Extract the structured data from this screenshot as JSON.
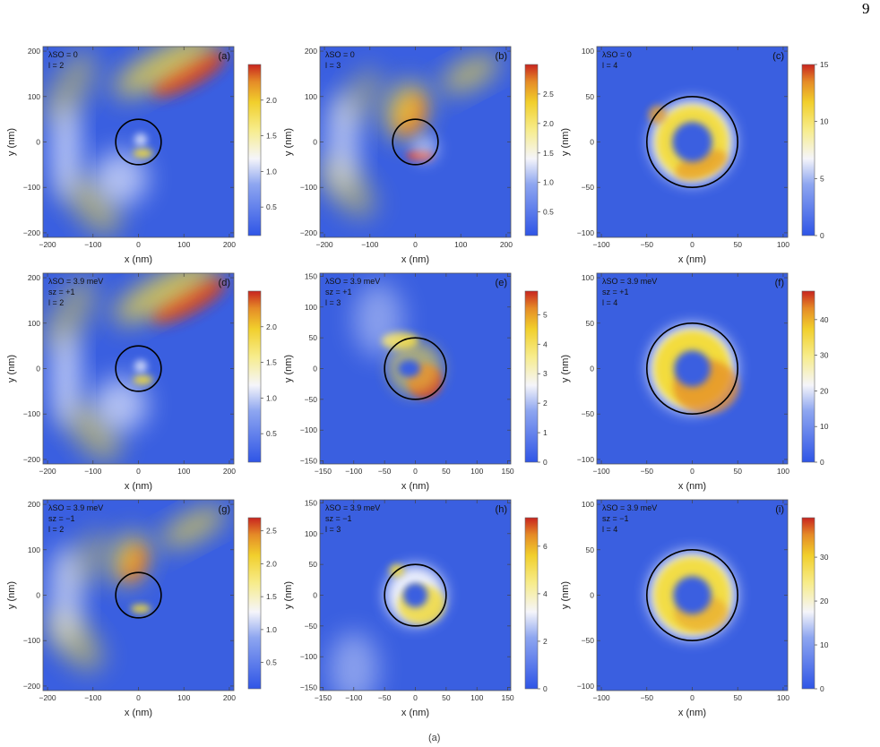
{
  "page_number": "9",
  "caption_mark": "(a)",
  "colors": {
    "low": "#3a5fe0",
    "mid": "#ffffff",
    "yellow": "#f3dc3c",
    "high": "#cf2e22",
    "frame": "#555555"
  },
  "chart_data": [
    {
      "type": "heatmap",
      "panel_label": "(a)",
      "annotations": [
        "λSO = 0",
        "l = 2"
      ],
      "xlabel": "x (nm)",
      "ylabel": "y (nm)",
      "xlim": [
        -210,
        210
      ],
      "ylim": [
        -210,
        210
      ],
      "xticks": [
        -200,
        -100,
        0,
        100,
        200
      ],
      "yticks": [
        -200,
        -100,
        0,
        100,
        200
      ],
      "colorbar": {
        "range": [
          0.1,
          2.5
        ],
        "ticks": [
          0.5,
          1.0,
          1.5,
          2.0
        ],
        "tick_labels": [
          "0.5",
          "1.0",
          "1.5",
          "2.0"
        ]
      },
      "circle": {
        "center": [
          0,
          0
        ],
        "radius": 50
      }
    },
    {
      "type": "heatmap",
      "panel_label": "(b)",
      "annotations": [
        "λSO = 0",
        "l = 3"
      ],
      "xlabel": "x (nm)",
      "ylabel": "y (nm)",
      "xlim": [
        -210,
        210
      ],
      "ylim": [
        -210,
        210
      ],
      "xticks": [
        -200,
        -100,
        0,
        100,
        200
      ],
      "yticks": [
        -200,
        -100,
        0,
        100,
        200
      ],
      "colorbar": {
        "range": [
          0.1,
          3.0
        ],
        "ticks": [
          0.5,
          1.0,
          1.5,
          2.0,
          2.5
        ],
        "tick_labels": [
          "0.5",
          "1.0",
          "1.5",
          "2.0",
          "2.5"
        ]
      },
      "circle": {
        "center": [
          0,
          0
        ],
        "radius": 50
      }
    },
    {
      "type": "heatmap",
      "panel_label": "(c)",
      "annotations": [
        "λSO = 0",
        "l = 4"
      ],
      "xlabel": "x (nm)",
      "ylabel": "y (nm)",
      "xlim": [
        -105,
        105
      ],
      "ylim": [
        -105,
        105
      ],
      "xticks": [
        -100,
        -50,
        0,
        50,
        100
      ],
      "yticks": [
        -100,
        -50,
        0,
        50,
        100
      ],
      "colorbar": {
        "range": [
          0,
          15
        ],
        "ticks": [
          0,
          5,
          10,
          15
        ],
        "tick_labels": [
          "0",
          "5",
          "10",
          "15"
        ]
      },
      "circle": {
        "center": [
          0,
          0
        ],
        "radius": 50
      }
    },
    {
      "type": "heatmap",
      "panel_label": "(d)",
      "annotations": [
        "λSO = 3.9 meV",
        "sz = +1",
        "l = 2"
      ],
      "xlabel": "x (nm)",
      "ylabel": "y (nm)",
      "xlim": [
        -210,
        210
      ],
      "ylim": [
        -210,
        210
      ],
      "xticks": [
        -200,
        -100,
        0,
        100,
        200
      ],
      "yticks": [
        -200,
        -100,
        0,
        100,
        200
      ],
      "colorbar": {
        "range": [
          0.1,
          2.5
        ],
        "ticks": [
          0.5,
          1.0,
          1.5,
          2.0
        ],
        "tick_labels": [
          "0.5",
          "1.0",
          "1.5",
          "2.0"
        ]
      },
      "circle": {
        "center": [
          0,
          0
        ],
        "radius": 50
      }
    },
    {
      "type": "heatmap",
      "panel_label": "(e)",
      "annotations": [
        "λSO = 3.9 meV",
        "sz = +1",
        "l = 3"
      ],
      "xlabel": "x (nm)",
      "ylabel": "y (nm)",
      "xlim": [
        -155,
        155
      ],
      "ylim": [
        -155,
        155
      ],
      "xticks": [
        -150,
        -100,
        -50,
        0,
        50,
        100,
        150
      ],
      "yticks": [
        -150,
        -100,
        -50,
        0,
        50,
        100,
        150
      ],
      "colorbar": {
        "range": [
          0,
          5.8
        ],
        "ticks": [
          0,
          1,
          2,
          3,
          4,
          5
        ],
        "tick_labels": [
          "0",
          "1",
          "2",
          "3",
          "4",
          "5"
        ]
      },
      "circle": {
        "center": [
          0,
          0
        ],
        "radius": 50
      }
    },
    {
      "type": "heatmap",
      "panel_label": "(f)",
      "annotations": [
        "λSO = 3.9 meV",
        "sz = +1",
        "l = 4"
      ],
      "xlabel": "x (nm)",
      "ylabel": "y (nm)",
      "xlim": [
        -105,
        105
      ],
      "ylim": [
        -105,
        105
      ],
      "xticks": [
        -100,
        -50,
        0,
        50,
        100
      ],
      "yticks": [
        -100,
        -50,
        0,
        50,
        100
      ],
      "colorbar": {
        "range": [
          0,
          48
        ],
        "ticks": [
          0,
          10,
          20,
          30,
          40
        ],
        "tick_labels": [
          "0",
          "10",
          "20",
          "30",
          "40"
        ]
      },
      "circle": {
        "center": [
          0,
          0
        ],
        "radius": 50
      }
    },
    {
      "type": "heatmap",
      "panel_label": "(g)",
      "annotations": [
        "λSO = 3.9 meV",
        "sz = −1",
        "l = 2"
      ],
      "xlabel": "x (nm)",
      "ylabel": "y (nm)",
      "xlim": [
        -210,
        210
      ],
      "ylim": [
        -210,
        210
      ],
      "xticks": [
        -200,
        -100,
        0,
        100,
        200
      ],
      "yticks": [
        -200,
        -100,
        0,
        100,
        200
      ],
      "colorbar": {
        "range": [
          0.1,
          2.7
        ],
        "ticks": [
          0.5,
          1.0,
          1.5,
          2.0,
          2.5
        ],
        "tick_labels": [
          "0.5",
          "1.0",
          "1.5",
          "2.0",
          "2.5"
        ]
      },
      "circle": {
        "center": [
          0,
          0
        ],
        "radius": 50
      }
    },
    {
      "type": "heatmap",
      "panel_label": "(h)",
      "annotations": [
        "λSO = 3.9 meV",
        "sz = −1",
        "l = 3"
      ],
      "xlabel": "x (nm)",
      "ylabel": "y (nm)",
      "xlim": [
        -155,
        155
      ],
      "ylim": [
        -155,
        155
      ],
      "xticks": [
        -150,
        -100,
        -50,
        0,
        50,
        100,
        150
      ],
      "yticks": [
        -150,
        -100,
        -50,
        0,
        50,
        100,
        150
      ],
      "colorbar": {
        "range": [
          0,
          7.2
        ],
        "ticks": [
          0,
          2,
          4,
          6
        ],
        "tick_labels": [
          "0",
          "2",
          "4",
          "6"
        ]
      },
      "circle": {
        "center": [
          0,
          0
        ],
        "radius": 50
      }
    },
    {
      "type": "heatmap",
      "panel_label": "(i)",
      "annotations": [
        "λSO = 3.9 meV",
        "sz = −1",
        "l = 4"
      ],
      "xlabel": "x (nm)",
      "ylabel": "y (nm)",
      "xlim": [
        -105,
        105
      ],
      "ylim": [
        -105,
        105
      ],
      "xticks": [
        -100,
        -50,
        0,
        50,
        100
      ],
      "yticks": [
        -100,
        -50,
        0,
        50,
        100
      ],
      "colorbar": {
        "range": [
          0,
          39
        ],
        "ticks": [
          0,
          10,
          20,
          30
        ],
        "tick_labels": [
          "0",
          "10",
          "20",
          "30"
        ]
      },
      "circle": {
        "center": [
          0,
          0
        ],
        "radius": 50
      }
    }
  ]
}
